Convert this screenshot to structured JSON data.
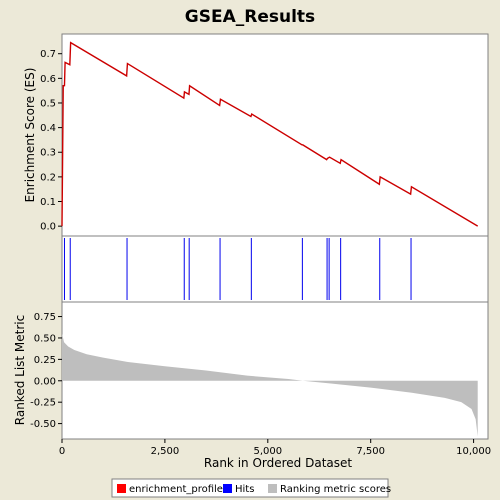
{
  "chart_data": [
    {
      "type": "line",
      "title": "GSEA_Results",
      "ylabel": "Enrichment Score (ES)",
      "ylim": [
        -0.04,
        0.78
      ],
      "xlim": [
        0,
        10350
      ],
      "yticks": [
        "0.0",
        "0.1",
        "0.2",
        "0.3",
        "0.4",
        "0.5",
        "0.6",
        "0.7"
      ],
      "ytick_values": [
        0.0,
        0.1,
        0.2,
        0.3,
        0.4,
        0.5,
        0.6,
        0.7
      ],
      "grid": false,
      "series": [
        {
          "name": "enrichment_profile",
          "color": "#cc0000",
          "points": [
            [
              0,
              0.0
            ],
            [
              30,
              0.57
            ],
            [
              60,
              0.57
            ],
            [
              75,
              0.665
            ],
            [
              190,
              0.655
            ],
            [
              210,
              0.745
            ],
            [
              1570,
              0.61
            ],
            [
              1590,
              0.66
            ],
            [
              2960,
              0.52
            ],
            [
              2975,
              0.545
            ],
            [
              3085,
              0.535
            ],
            [
              3100,
              0.57
            ],
            [
              3830,
              0.49
            ],
            [
              3850,
              0.515
            ],
            [
              4590,
              0.445
            ],
            [
              4610,
              0.455
            ],
            [
              5830,
              0.33
            ],
            [
              5850,
              0.33
            ],
            [
              6430,
              0.27
            ],
            [
              6450,
              0.275
            ],
            [
              6500,
              0.28
            ],
            [
              6760,
              0.255
            ],
            [
              6780,
              0.27
            ],
            [
              7710,
              0.17
            ],
            [
              7730,
              0.2
            ],
            [
              8470,
              0.13
            ],
            [
              8490,
              0.16
            ],
            [
              10100,
              0.0
            ]
          ]
        }
      ]
    },
    {
      "type": "hits",
      "series": [
        {
          "name": "Hits",
          "color": "#0000ee",
          "x": [
            60,
            200,
            1580,
            2970,
            3090,
            3840,
            4600,
            5840,
            6440,
            6490,
            6770,
            7720,
            8480
          ]
        }
      ]
    },
    {
      "type": "area",
      "xlabel": "Rank in Ordered Dataset",
      "ylabel": "Ranked List Metric",
      "ylim": [
        -0.68,
        0.92
      ],
      "xlim": [
        0,
        10350
      ],
      "yticks": [
        "-0.50",
        "-0.25",
        "0.00",
        "0.25",
        "0.50",
        "0.75"
      ],
      "ytick_values": [
        -0.5,
        -0.25,
        0.0,
        0.25,
        0.5,
        0.75
      ],
      "xticks": [
        "0",
        "2,500",
        "5,000",
        "7,500",
        "10,000"
      ],
      "xtick_values": [
        0,
        2500,
        5000,
        7500,
        10000
      ],
      "series": [
        {
          "name": "Ranking metric scores",
          "color": "#bebebe",
          "points": [
            [
              0,
              0.55
            ],
            [
              50,
              0.45
            ],
            [
              150,
              0.4
            ],
            [
              300,
              0.36
            ],
            [
              600,
              0.31
            ],
            [
              1000,
              0.27
            ],
            [
              1600,
              0.22
            ],
            [
              2500,
              0.17
            ],
            [
              3500,
              0.12
            ],
            [
              4500,
              0.06
            ],
            [
              5500,
              0.02
            ],
            [
              5850,
              0.0
            ],
            [
              6500,
              -0.03
            ],
            [
              7500,
              -0.08
            ],
            [
              8500,
              -0.14
            ],
            [
              9300,
              -0.2
            ],
            [
              9700,
              -0.25
            ],
            [
              9950,
              -0.33
            ],
            [
              10050,
              -0.45
            ],
            [
              10100,
              -0.65
            ]
          ]
        }
      ]
    }
  ],
  "legend": {
    "items": [
      {
        "label": "enrichment_profile",
        "color": "#ff0000"
      },
      {
        "label": "Hits",
        "color": "#0000ff"
      },
      {
        "label": "Ranking metric scores",
        "color": "#bebebe"
      }
    ]
  },
  "colors": {
    "background": "#ece9d8",
    "panel": "#ffffff",
    "frame": "#808080"
  }
}
